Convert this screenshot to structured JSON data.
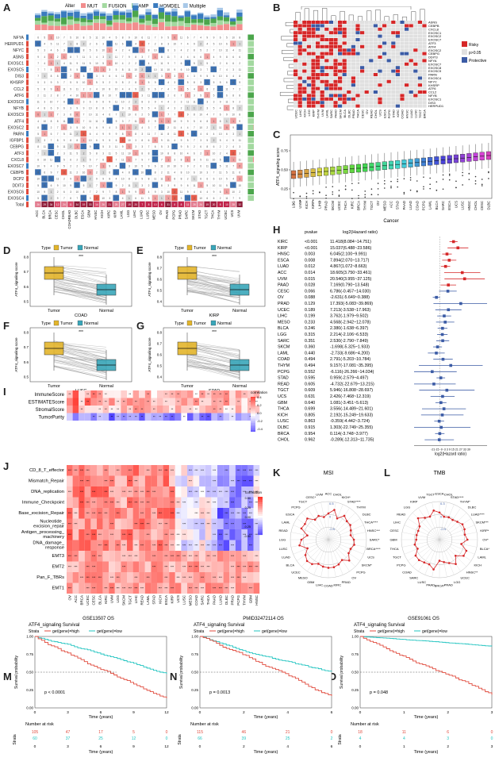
{
  "labels": {
    "A": "A",
    "B": "B",
    "C": "C",
    "D": "D",
    "E": "E",
    "F": "F",
    "G": "G",
    "H": "H",
    "I": "I",
    "J": "J",
    "K": "K",
    "L": "L",
    "M": "M",
    "N": "N",
    "O": "O"
  },
  "panelA": {
    "legend_title": "Alter",
    "legend": [
      {
        "name": "MUT",
        "color": "#f28e8e"
      },
      {
        "name": "FUSION",
        "color": "#a3d9a0"
      },
      {
        "name": "AMP",
        "color": "#4ca64c"
      },
      {
        "name": "HOMDEL",
        "color": "#3a7bbf"
      },
      {
        "name": "Multiple",
        "color": "#a8c8e8"
      }
    ],
    "genes": [
      "NFYA",
      "HERPUD1",
      "NFYC",
      "ASNS",
      "EXOSC1",
      "EXOSC5",
      "DIS3",
      "KHSRP",
      "CCL2",
      "ATF6",
      "EXOSC8",
      "NFYB",
      "EXOSC9",
      "ATF4",
      "EXOSC2",
      "PARN",
      "IGFBP1",
      "CEBPG",
      "ATF3",
      "CXCL8",
      "EXOSC7",
      "CEBPB",
      "DCP2",
      "DDIT3",
      "EXOSC6",
      "EXOSC4",
      "Total"
    ],
    "cancers": [
      "ACC",
      "BLCA",
      "BRCA",
      "CESC",
      "CHOL",
      "COADREAD",
      "DLBC",
      "ESCA",
      "GBM",
      "HNSC",
      "KICH",
      "KIRC",
      "KIRP",
      "LAML",
      "LGG",
      "LIHC",
      "LUAD",
      "LUSC",
      "MESO",
      "OV",
      "PAAD",
      "PCPG",
      "PRAD",
      "SARC",
      "SKCM",
      "STAD",
      "TGCT",
      "THCA",
      "THYM",
      "UCEC",
      "UCS",
      "UVM"
    ]
  },
  "panelB": {
    "genes": [
      "ASNS",
      "CEBPB",
      "CXCL8",
      "EXOSC1",
      "EXOSC2",
      "EXOSC7",
      "ATF3",
      "ATF4",
      "EXOSC2",
      "CEBPG",
      "DDIT3",
      "NFYA",
      "EXOSC7",
      "EXOSC8",
      "EXOSC9",
      "PARN",
      "EXOSC4",
      "NFYC",
      "KHSRP",
      "ATF6",
      "CCL2",
      "NFYB",
      "EXOSC1",
      "DIS3",
      "HERPUD1"
    ],
    "cancers": [
      "UCEC",
      "LIHC",
      "KICH",
      "LGG",
      "KIRP",
      "THYM",
      "UVM",
      "LAML",
      "SARC",
      "PAAD",
      "SKCM",
      "BLCA",
      "DLBC",
      "PRAD",
      "THCA",
      "CESC",
      "OV",
      "READ",
      "CHOL",
      "UCS",
      "ESCA",
      "PCPG",
      "STAD",
      "KIRC",
      "COAD",
      "HNSC",
      "LUAD",
      "LUSC",
      "TGCT",
      "BRCA"
    ],
    "legend": [
      {
        "name": "Risky",
        "color": "#d62728"
      },
      {
        "name": "p>0.05",
        "color": "#e0e0e0"
      },
      {
        "name": "Protective",
        "color": "#3b5ba5"
      }
    ]
  },
  "panelC": {
    "ylabel": "ATF4_signaling score",
    "xlabel": "Cancer",
    "yticks": [
      "0.25",
      "0.50",
      "0.75"
    ],
    "cancers": [
      "LGG",
      "UVM",
      "KICH",
      "KIRP",
      "LIHC",
      "PRAD",
      "SKCM",
      "UCEC",
      "THCA",
      "KIRC",
      "BRCA",
      "THYM",
      "TGCT",
      "OV",
      "MESO",
      "ACC",
      "STAD",
      "PAAD",
      "LUAD",
      "COAD",
      "PCPG",
      "LAML",
      "BLCA",
      "SARC",
      "ESCA",
      "UCS",
      "LUSC",
      "HNSC",
      "CHOL",
      "CESC",
      "DLBC"
    ]
  },
  "pair_common": {
    "type_label": "Type",
    "tumor": "Tumor",
    "normal": "Normal",
    "ylabel": "ATF4_signaling score",
    "sig": "***"
  },
  "pairs": [
    {
      "id": "D",
      "cancer": "COAD",
      "yticks": [
        "0.5",
        "0.6",
        "0.7",
        "0.8"
      ]
    },
    {
      "id": "E",
      "cancer": "KIRP",
      "yticks": [
        "0.4",
        "0.5",
        "0.6",
        "0.7",
        "0.8"
      ]
    },
    {
      "id": "F",
      "cancer": "LUSC",
      "yticks": [
        "0.5",
        "0.6",
        "0.7",
        "0.8"
      ]
    },
    {
      "id": "G",
      "cancer": "STAD",
      "yticks": [
        "0.4",
        "0.5",
        "0.6",
        "0.7",
        "0.8"
      ]
    }
  ],
  "panelH": {
    "col_pvalue": "pvalue",
    "col_hr": "log2(Hazard ratio)",
    "xlabel": "log2(Hazard ratio)",
    "xticks": "-21-15 -9 -3 3 9 15 21 27 33 39",
    "rows": [
      {
        "c": "KIRC",
        "p": "<0.001",
        "hr": "11.418(8.084~14.751)"
      },
      {
        "c": "KIRP",
        "p": "<0.001",
        "hr": "15.037(6.488~23.586)"
      },
      {
        "c": "HNSC",
        "p": "0.003",
        "hr": "6.045(2.100~9.991)"
      },
      {
        "c": "ESCA",
        "p": "0.008",
        "hr": "7.894(2.070~13.717)"
      },
      {
        "c": "LUAD",
        "p": "0.012",
        "hr": "4.867(1.072~8.663)"
      },
      {
        "c": "ACC",
        "p": "0.014",
        "hr": "18.605(3.750~33.461)"
      },
      {
        "c": "UVM",
        "p": "0.015",
        "hr": "20.540(3.955~37.125)"
      },
      {
        "c": "PAAD",
        "p": "0.028",
        "hr": "7.169(0.790~13.548)"
      },
      {
        "c": "CESC",
        "p": "0.066",
        "hr": "6.786(-0.457~14.030)"
      },
      {
        "c": "OV",
        "p": "0.088",
        "hr": "-2.631(-5.649~0.388)"
      },
      {
        "c": "PRAD",
        "p": "0.129",
        "hr": "17.393(-5.083~39.869)"
      },
      {
        "c": "UCEC",
        "p": "0.189",
        "hr": "7.213(-3.538~17.963)"
      },
      {
        "c": "LIHC",
        "p": "0.199",
        "hr": "3.762(-1.979~9.502)"
      },
      {
        "c": "MESO",
        "p": "0.233",
        "hr": "4.568(-2.942~12.078)"
      },
      {
        "c": "BLCA",
        "p": "0.246",
        "hr": "2.380(-1.638~6.397)"
      },
      {
        "c": "LGG",
        "p": "0.315",
        "hr": "2.214(-2.106~6.533)"
      },
      {
        "c": "SARC",
        "p": "0.351",
        "hr": "2.530(-2.790~7.849)"
      },
      {
        "c": "SKCM",
        "p": "0.360",
        "hr": "-1.698(-5.325~1.933)"
      },
      {
        "c": "LAML",
        "p": "0.440",
        "hr": "-2.733(-9.686~4.200)"
      },
      {
        "c": "COAD",
        "p": "0.494",
        "hr": "2.791(-5.203~10.784)"
      },
      {
        "c": "THYM",
        "p": "0.494",
        "hr": "9.157(-17.081~35.395)"
      },
      {
        "c": "PCPG",
        "p": "0.552",
        "hr": "-6.116(-26.266~14.034)"
      },
      {
        "c": "STAD",
        "p": "0.595",
        "hr": "0.959(-2.579~4.497)"
      },
      {
        "c": "READ",
        "p": "0.605",
        "hr": "-4.732(-22.679~13.215)"
      },
      {
        "c": "TGCT",
        "p": "0.609",
        "hr": "5.946(-16.808~28.697)"
      },
      {
        "c": "UCS",
        "p": "0.631",
        "hr": "2.426(-7.468~12.319)"
      },
      {
        "c": "GBM",
        "p": "0.640",
        "hr": "1.081(-3.451~5.613)"
      },
      {
        "c": "THCA",
        "p": "0.699",
        "hr": "3.556(-14.489~21.601)"
      },
      {
        "c": "KICH",
        "p": "0.805",
        "hr": "2.192(-15.249~19.633)"
      },
      {
        "c": "LUSC",
        "p": "0.863",
        "hr": "-0.359(-4.442~3.724)"
      },
      {
        "c": "DLBC",
        "p": "0.915",
        "hr": "1.303(-22.749~25.355)"
      },
      {
        "c": "BRCA",
        "p": "0.954",
        "hr": "0.114(-3.748~3.977)"
      },
      {
        "c": "CHOL",
        "p": "0.962",
        "hr": "-0.289(-12.313~11.735)"
      }
    ]
  },
  "panelI": {
    "rows": [
      "ImmuneScore",
      "ESTIMATEScore",
      "StromalScore",
      "TumorPurity"
    ],
    "legend_title": "correlation",
    "legend_ticks": [
      "0.4",
      "0.2",
      "0.0",
      "-0.2",
      "-0.4"
    ]
  },
  "panelJ": {
    "rows": [
      "CD_8_T_effector",
      "Mismatch_Repair",
      "DNA_replication",
      "Immune_Checkpoint",
      "Base_excision_Repair",
      "Nucleotide_\nexcision_repair",
      "Antigen_processing_\nmachinery",
      "DNA_damage_\nresponse",
      "EMT3",
      "EMT2",
      "Pan_F_TBRs",
      "EMT1"
    ],
    "cancers": [
      "OV",
      "ACC",
      "BRCA",
      "UCEC",
      "CESC",
      "BLCA",
      "KIRC",
      "UVM",
      "LGG",
      "SKCM",
      "TGCT",
      "LIHC",
      "READ",
      "LAML",
      "STAD",
      "KICH",
      "ESCA",
      "KIRP",
      "UCS",
      "LUSC",
      "MESO",
      "COAD",
      "SARC",
      "THCA",
      "PAAD",
      "LUAD",
      "DLBC",
      "PRAD",
      "PCPG",
      "THYM",
      "GBM",
      "HNSC"
    ],
    "legend_title": "correlation",
    "legend_ticks": [
      "0.50",
      "0.25",
      "0.00",
      "-0.25",
      "-0.50"
    ]
  },
  "panelK": {
    "title": "MSI",
    "rticks": [
      "0.5",
      "0",
      "-0.5"
    ],
    "labels": [
      "ACC",
      "CHOL",
      "KICH*",
      "STAD****",
      "THYM",
      "DLBC",
      "THCA****",
      "HNSC***",
      "SARC*",
      "BRCA****",
      "UCS",
      "SKCM*",
      "PCPG",
      "OV",
      "PRAD",
      "KIRC",
      "COAD",
      "LIHC",
      "GBM",
      "MESO",
      "UCEC",
      "BLCA",
      "LUAD",
      "LUSC",
      "LGG",
      "READ",
      "LAML",
      "ESCA",
      "PCPG",
      "TGCT",
      "CESC*",
      "UVM"
    ]
  },
  "panelL": {
    "title": "TMB",
    "rticks": [
      "0.3",
      "0",
      "-0.3"
    ],
    "labels": [
      "ESCA",
      "CHOL",
      "STAD****",
      "THYM*",
      "DLBC",
      "LUAD****",
      "SKCM***",
      "KIRP*",
      "OV*",
      "BLCA*",
      "LAML",
      "KICH",
      "HNSC**",
      "UCEC",
      "LGG",
      "PRAD",
      "BRCA*",
      "PAAD",
      "LUSC",
      "SARC",
      "COAD",
      "PCPG",
      "TGCT",
      "THCA",
      "GBM",
      "CESC",
      "LIHC",
      "READ",
      "LGG",
      "KIRP",
      "UVM",
      "TGCT"
    ]
  },
  "survival": [
    {
      "id": "M",
      "title": "GSE13507 OS",
      "subtitle": "ATF4_signaling Survival",
      "strata_label": "Strata",
      "high": "get(gene)=high",
      "low": "get(gene)=low",
      "pval": "p < 0.0001",
      "ylabel": "Survival probability",
      "xlabel": "Time (years)",
      "xticks": [
        "0",
        "3",
        "6",
        "9",
        "12"
      ],
      "yticks": [
        "0.00",
        "0.25",
        "0.50",
        "0.75",
        "1.00"
      ],
      "risk_title": "Number at risk",
      "risk_high": [
        "105",
        "47",
        "17",
        "5",
        "0"
      ],
      "risk_low": [
        "60",
        "37",
        "25",
        "12",
        "0"
      ]
    },
    {
      "id": "N",
      "title": "PMID32472114 OS",
      "subtitle": "ATF4_signaling Survival",
      "strata_label": "Strata",
      "high": "get(gene)=high",
      "low": "get(gene)=low",
      "pval": "p = 0.0013",
      "ylabel": "Survival probability",
      "xlabel": "Time (years)",
      "xticks": [
        "0",
        "2",
        "4",
        "6"
      ],
      "yticks": [
        "0.00",
        "0.25",
        "0.50",
        "0.75",
        "1.00"
      ],
      "risk_title": "Number at risk",
      "risk_high": [
        "115",
        "46",
        "21",
        "0"
      ],
      "risk_low": [
        "66",
        "39",
        "25",
        "2"
      ]
    },
    {
      "id": "O",
      "title": "GSE91061 OS",
      "subtitle": "ATF4_signaling Survival",
      "strata_label": "Strata",
      "high": "get(gene)=high",
      "low": "get(gene)=low",
      "pval": "p = 0.048",
      "ylabel": "Survival probability",
      "xlabel": "Time (years)",
      "xticks": [
        "0",
        "1",
        "2",
        "3"
      ],
      "yticks": [
        "0.00",
        "0.25",
        "0.50",
        "0.75",
        "1.00"
      ],
      "risk_title": "Number at risk",
      "risk_high": [
        "18",
        "11",
        "6",
        "0"
      ],
      "risk_low": [
        "4",
        "4",
        "3",
        "0"
      ]
    }
  ],
  "colors": {
    "red": "#e04a3c",
    "teal": "#21c4c0",
    "blue": "#3b5ba5",
    "tumor": "#e3b52b",
    "normal": "#3aa6b9"
  }
}
